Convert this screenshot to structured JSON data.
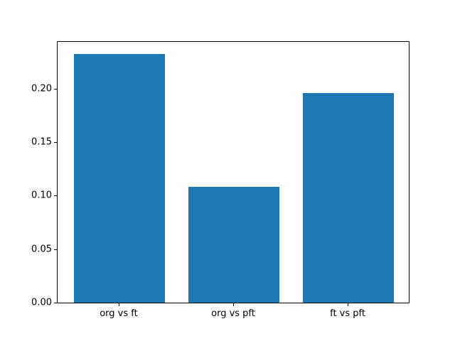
{
  "chart_data": {
    "type": "bar",
    "title": "",
    "xlabel": "",
    "ylabel": "",
    "categories": [
      "org vs ft",
      "org vs pft",
      "ft vs pft"
    ],
    "values": [
      0.232,
      0.108,
      0.196
    ],
    "x_positions": [
      0,
      1,
      2
    ],
    "bar_width": 0.8,
    "xlim": [
      -0.54,
      2.54
    ],
    "ylim": [
      0,
      0.2436
    ],
    "yticks": [
      "0.00",
      "0.05",
      "0.10",
      "0.15",
      "0.20"
    ],
    "ytick_values": [
      0.0,
      0.05,
      0.1,
      0.15,
      0.2
    ],
    "grid": false,
    "legend": null,
    "bar_color": "#1f77b4",
    "axis_color": "#000000",
    "background_color": "#ffffff"
  }
}
